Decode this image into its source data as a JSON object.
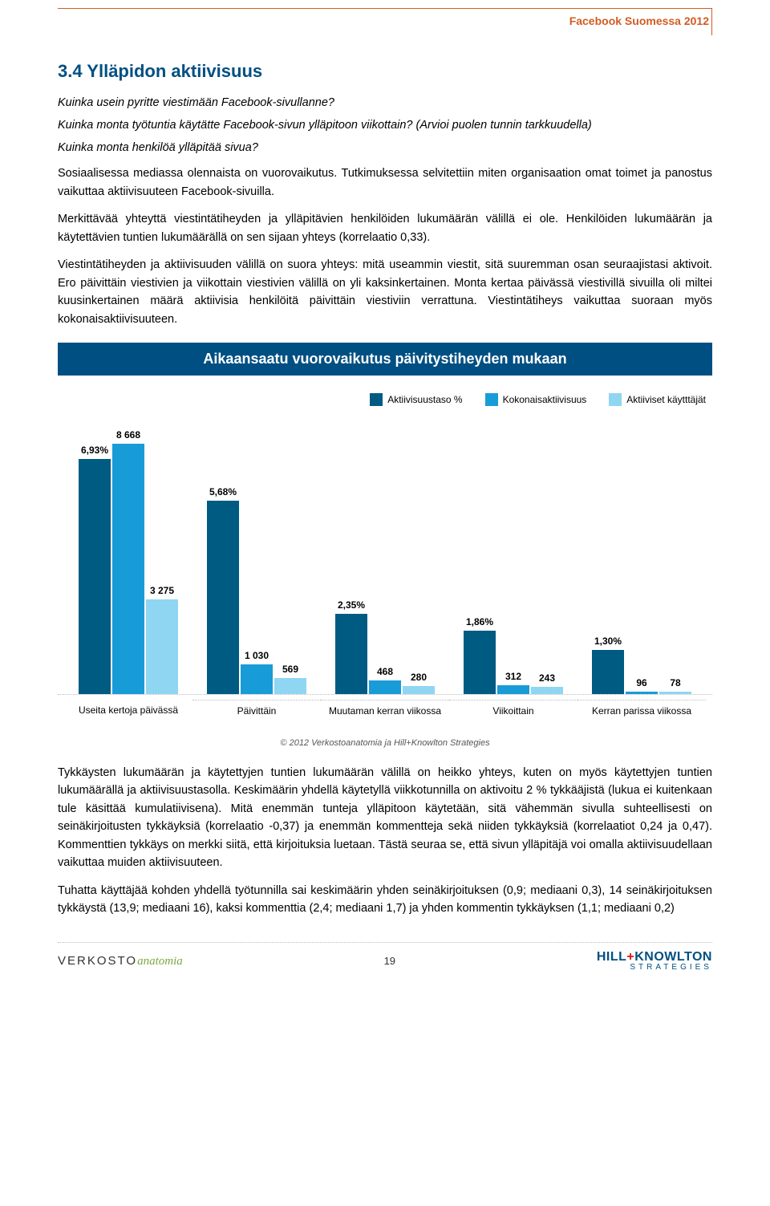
{
  "header": {
    "corner_label": "Facebook Suomessa 2012"
  },
  "section": {
    "heading": "3.4 Ylläpidon aktiivisuus",
    "intro": {
      "l1": "Kuinka usein pyritte viestimään Facebook-sivullanne?",
      "l2": "Kuinka monta työtuntia käytätte Facebook-sivun ylläpitoon viikottain? (Arvioi puolen tunnin tarkkuudella)",
      "l3": "Kuinka monta henkilöä ylläpitää sivua?"
    },
    "p1": "Sosiaalisessa mediassa olennaista on vuorovaikutus. Tutkimuksessa selvitettiin miten organisaation omat toimet ja panostus vaikuttaa aktiivisuuteen Facebook-sivuilla.",
    "p2": "Merkittävää yhteyttä viestintätiheyden ja ylläpitävien henkilöiden lukumäärän välillä ei ole. Henkilöiden lukumäärän ja käytettävien tuntien lukumäärällä on sen sijaan yhteys (korrelaatio 0,33).",
    "p3": "Viestintätiheyden ja aktiivisuuden välillä on suora yhteys: mitä useammin viestit, sitä suuremman osan seuraajistasi aktivoit. Ero päivittäin viestivien ja viikottain viestivien välillä on yli kaksinkertainen. Monta kertaa päivässä viestivillä sivuilla oli miltei kuusinkertainen määrä aktiivisia henkilöitä päivittäin viestiviin verrattuna. Viestintätiheys vaikuttaa suoraan myös kokonaisaktiivisuuteen."
  },
  "chart": {
    "title": "Aikaansaatu vuorovaikutus päivitystiheyden mukaan",
    "legend": {
      "s1": {
        "label": "Aktiivisuustaso %",
        "color": "#005b82"
      },
      "s2": {
        "label": "Kokonaisaktiivisuus",
        "color": "#189cd8"
      },
      "s3": {
        "label": "Aktiiviset käytttäjät",
        "color": "#8fd6f2"
      }
    },
    "percent_max": 8.5,
    "value_max": 10000,
    "categories": [
      {
        "name": "Useita kertoja päivässä",
        "pct": "6,93%",
        "pct_v": 6.93,
        "v2": "8 668",
        "v2_v": 8668,
        "v3": "3 275",
        "v3_v": 3275
      },
      {
        "name": "Päivittäin",
        "pct": "5,68%",
        "pct_v": 5.68,
        "v2": "1 030",
        "v2_v": 1030,
        "v3": "569",
        "v3_v": 569
      },
      {
        "name": "Muutaman kerran viikossa",
        "pct": "2,35%",
        "pct_v": 2.35,
        "v2": "468",
        "v2_v": 468,
        "v3": "280",
        "v3_v": 280
      },
      {
        "name": "Viikoittain",
        "pct": "1,86%",
        "pct_v": 1.86,
        "v2": "312",
        "v2_v": 312,
        "v3": "243",
        "v3_v": 243
      },
      {
        "name": "Kerran parissa viikossa",
        "pct": "1,30%",
        "pct_v": 1.3,
        "v2": "96",
        "v2_v": 96,
        "v3": "78",
        "v3_v": 78
      }
    ]
  },
  "copyright": "© 2012 Verkostoanatomia ja Hill+Knowlton Strategies",
  "after": {
    "p1": "Tykkäysten lukumäärän ja käytettyjen tuntien lukumäärän välillä on heikko yhteys, kuten on myös käytettyjen tuntien lukumäärällä ja aktiivisuustasolla. Keskimäärin yhdellä käytetyllä viikkotunnilla on aktivoitu 2 % tykkääjistä (lukua ei kuitenkaan tule käsittää kumulatiivisena). Mitä enemmän tunteja ylläpitoon käytetään, sitä vähemmän sivulla suhteellisesti on seinäkirjoitusten tykkäyksiä (korrelaatio -0,37) ja enemmän kommentteja sekä niiden tykkäyksiä (korrelaatiot 0,24 ja 0,47). Kommenttien tykkäys on merkki siitä, että kirjoituksia luetaan. Tästä seuraa se, että sivun ylläpitäjä voi omalla aktiivisuudellaan vaikuttaa muiden aktiivisuuteen.",
    "p2": "Tuhatta käyttäjää kohden yhdellä työtunnilla sai keskimäärin yhden seinäkirjoituksen (0,9; mediaani 0,3), 14 seinäkirjoituksen tykkäystä (13,9; mediaani 16), kaksi kommenttia (2,4; mediaani 1,7) ja yhden kommentin tykkäyksen (1,1; mediaani 0,2)"
  },
  "footer": {
    "left_a": "VERKOSTO",
    "left_b": "anatomia",
    "page_no": "19",
    "hk1": "HILL",
    "hk_plus": "+",
    "hk2": "KNOWLTON",
    "hk_sub": "STRATEGIES"
  }
}
